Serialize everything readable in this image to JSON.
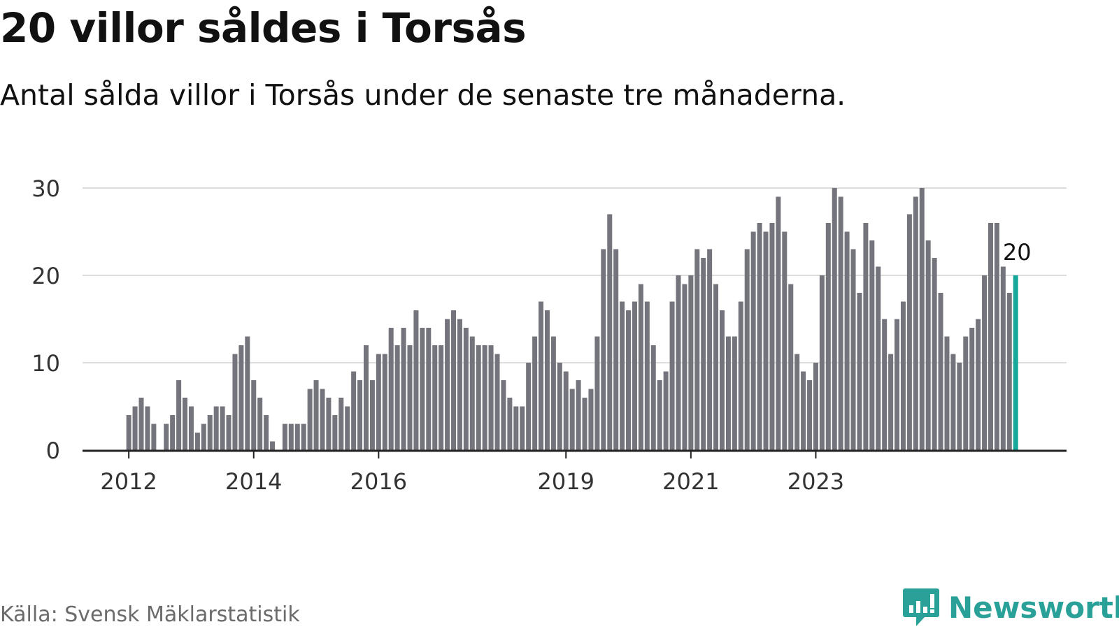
{
  "title": "20 villor såldes i Torsås",
  "subtitle": "Antal sålda villor i Torsås under de senaste tre månaderna.",
  "source": "Källa: Svensk Mäklarstatistik",
  "brand": {
    "name": "Newsworthy",
    "icon": "newsworthy-logo-icon",
    "color": "#2aa198"
  },
  "colors": {
    "bar": "#74747c",
    "highlight": "#16a89a",
    "grid": "#dcdcdc",
    "axis": "#222222"
  },
  "chart_data": {
    "type": "bar",
    "title": "20 villor såldes i Torsås",
    "xlabel": "",
    "ylabel": "",
    "ylim": [
      0,
      30
    ],
    "yticks": [
      0,
      10,
      20,
      30
    ],
    "grid": true,
    "start": "2011-12",
    "x_ticks": [
      {
        "label": "2012",
        "index": 5
      },
      {
        "label": "2014",
        "index": 25
      },
      {
        "label": "2016",
        "index": 45
      },
      {
        "label": "2019",
        "index": 75
      },
      {
        "label": "2021",
        "index": 95
      },
      {
        "label": "2023",
        "index": 115
      }
    ],
    "values": [
      0,
      0,
      0,
      0,
      0,
      4,
      5,
      6,
      5,
      3,
      0,
      3,
      4,
      8,
      6,
      5,
      2,
      3,
      4,
      5,
      5,
      4,
      11,
      12,
      13,
      8,
      6,
      4,
      1,
      0,
      3,
      3,
      3,
      3,
      7,
      8,
      7,
      6,
      4,
      6,
      5,
      9,
      8,
      12,
      8,
      11,
      11,
      14,
      12,
      14,
      12,
      16,
      14,
      14,
      12,
      12,
      15,
      16,
      15,
      14,
      13,
      12,
      12,
      12,
      11,
      8,
      6,
      5,
      5,
      10,
      13,
      17,
      16,
      13,
      10,
      9,
      7,
      8,
      6,
      7,
      13,
      23,
      27,
      23,
      17,
      16,
      17,
      19,
      17,
      12,
      8,
      9,
      17,
      20,
      19,
      20,
      23,
      22,
      23,
      19,
      16,
      13,
      13,
      17,
      23,
      25,
      26,
      25,
      26,
      29,
      25,
      19,
      11,
      9,
      8,
      10,
      20,
      26,
      30,
      29,
      25,
      23,
      18,
      26,
      24,
      21,
      15,
      11,
      15,
      17,
      27,
      29,
      30,
      24,
      22,
      18,
      13,
      11,
      10,
      13,
      14,
      15,
      20,
      26,
      26,
      21,
      18,
      20
    ],
    "highlight_index": 147,
    "annotation": {
      "label": "20",
      "index": 147,
      "value": 20
    }
  }
}
